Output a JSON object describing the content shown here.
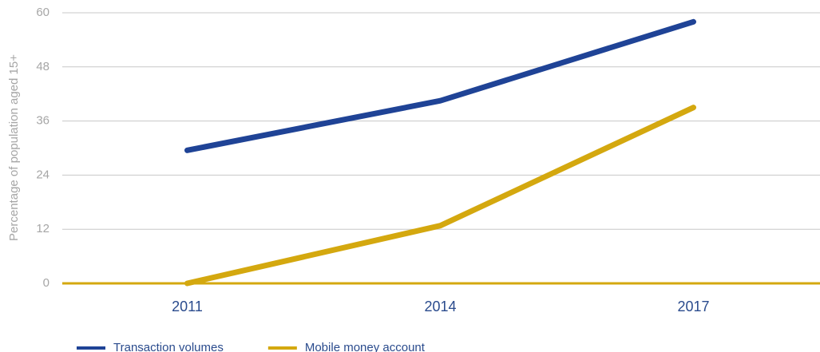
{
  "chart_data": {
    "type": "line",
    "ylabel": "Percentage of population aged 15+",
    "categories": [
      "2011",
      "2014",
      "2017"
    ],
    "series": [
      {
        "name": "Transaction volumes",
        "color": "#1f4396",
        "values": [
          29.5,
          40.5,
          58
        ]
      },
      {
        "name": "Mobile money account",
        "color": "#d4a80f",
        "values": [
          0,
          12.8,
          39
        ]
      }
    ],
    "ylim": [
      0,
      60
    ],
    "yticks": [
      0,
      12,
      24,
      36,
      48,
      60
    ],
    "grid": true,
    "axis_color": "#d4a80f",
    "legend": "bottom-left"
  }
}
